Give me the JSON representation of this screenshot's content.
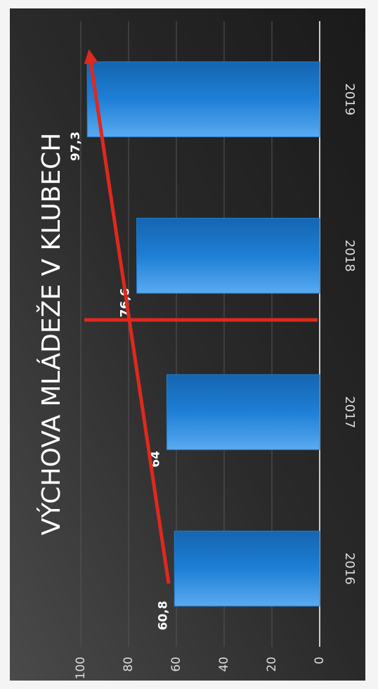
{
  "chart_data": {
    "type": "bar",
    "title": "VÝCHOVA MLÁDEŽE V KLUBECH",
    "categories": [
      "2016",
      "2017",
      "2018",
      "2019"
    ],
    "values": [
      60.8,
      64,
      76.6,
      97.3
    ],
    "value_labels": [
      "60,8",
      "64",
      "76,6",
      "97,3"
    ],
    "color": "#1e7fd6",
    "ylim": [
      0,
      100
    ],
    "yticks": [
      0,
      20,
      40,
      60,
      80,
      100
    ],
    "grid": true
  }
}
